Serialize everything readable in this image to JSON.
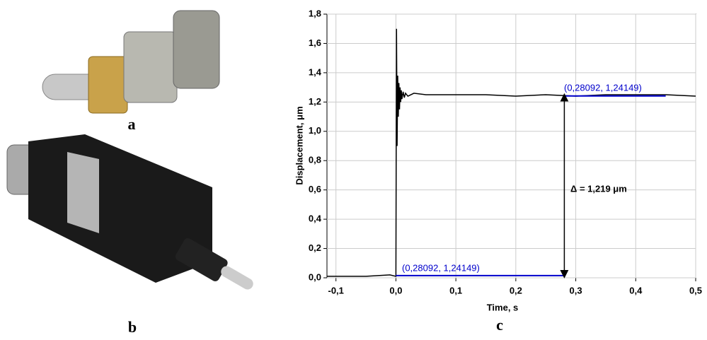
{
  "panels": [
    "a",
    "b",
    "c"
  ],
  "chart_data": {
    "type": "line",
    "x_label": "Time, s",
    "y_label": "Displacement, μm",
    "annotations": [
      "(0,28092, 1,24149)",
      "(0,28092, 1,24149)",
      "Δ = 1,219 μm"
    ],
    "xlim": [
      -0.115,
      0.5
    ],
    "ylim": [
      0,
      1.8
    ],
    "xticks": [
      {
        "value": -0.1,
        "label": "-0,1"
      },
      {
        "value": 0,
        "label": "0,0"
      },
      {
        "value": 0.1,
        "label": "0,1"
      },
      {
        "value": 0.2,
        "label": "0,2"
      },
      {
        "value": 0.3,
        "label": "0,3"
      },
      {
        "value": 0.4,
        "label": "0,4"
      },
      {
        "value": 0.5,
        "label": "0,5"
      }
    ],
    "yticks": [
      {
        "value": 0,
        "label": "0,0"
      },
      {
        "value": 0.2,
        "label": "0,2"
      },
      {
        "value": 0.4,
        "label": "0,4"
      },
      {
        "value": 0.6,
        "label": "0,6"
      },
      {
        "value": 0.8,
        "label": "0,8"
      },
      {
        "value": 1,
        "label": "1,0"
      },
      {
        "value": 1.2,
        "label": "1,2"
      },
      {
        "value": 1.4,
        "label": "1,4"
      },
      {
        "value": 1.6,
        "label": "1,6"
      },
      {
        "value": 1.8,
        "label": "1,8"
      }
    ],
    "grid": true,
    "series": [
      {
        "color": "#000000",
        "x": [
          -0.115,
          -0.1,
          -0.05,
          -0.01,
          0,
          0.001,
          0.002,
          0.003,
          0.004,
          0.005,
          0.006,
          0.007,
          0.008,
          0.009,
          0.01,
          0.012,
          0.014,
          0.016,
          0.02,
          0.03,
          0.05,
          0.1,
          0.15,
          0.2,
          0.25,
          0.3,
          0.35,
          0.4,
          0.45,
          0.5
        ],
        "values": [
          0.01,
          0.01,
          0.01,
          0.02,
          0.01,
          1.7,
          0.9,
          1.38,
          1.1,
          1.33,
          1.15,
          1.3,
          1.2,
          1.28,
          1.22,
          1.27,
          1.23,
          1.26,
          1.24,
          1.26,
          1.25,
          1.25,
          1.25,
          1.24,
          1.25,
          1.24,
          1.25,
          1.25,
          1.25,
          1.24
        ]
      },
      {
        "color": "#0000cc",
        "x": [
          0,
          0.28092
        ],
        "values": [
          0.015,
          0.015
        ]
      },
      {
        "color": "#0000cc",
        "x": [
          0.28092,
          0.45
        ],
        "values": [
          1.24149,
          1.24149
        ]
      }
    ]
  }
}
